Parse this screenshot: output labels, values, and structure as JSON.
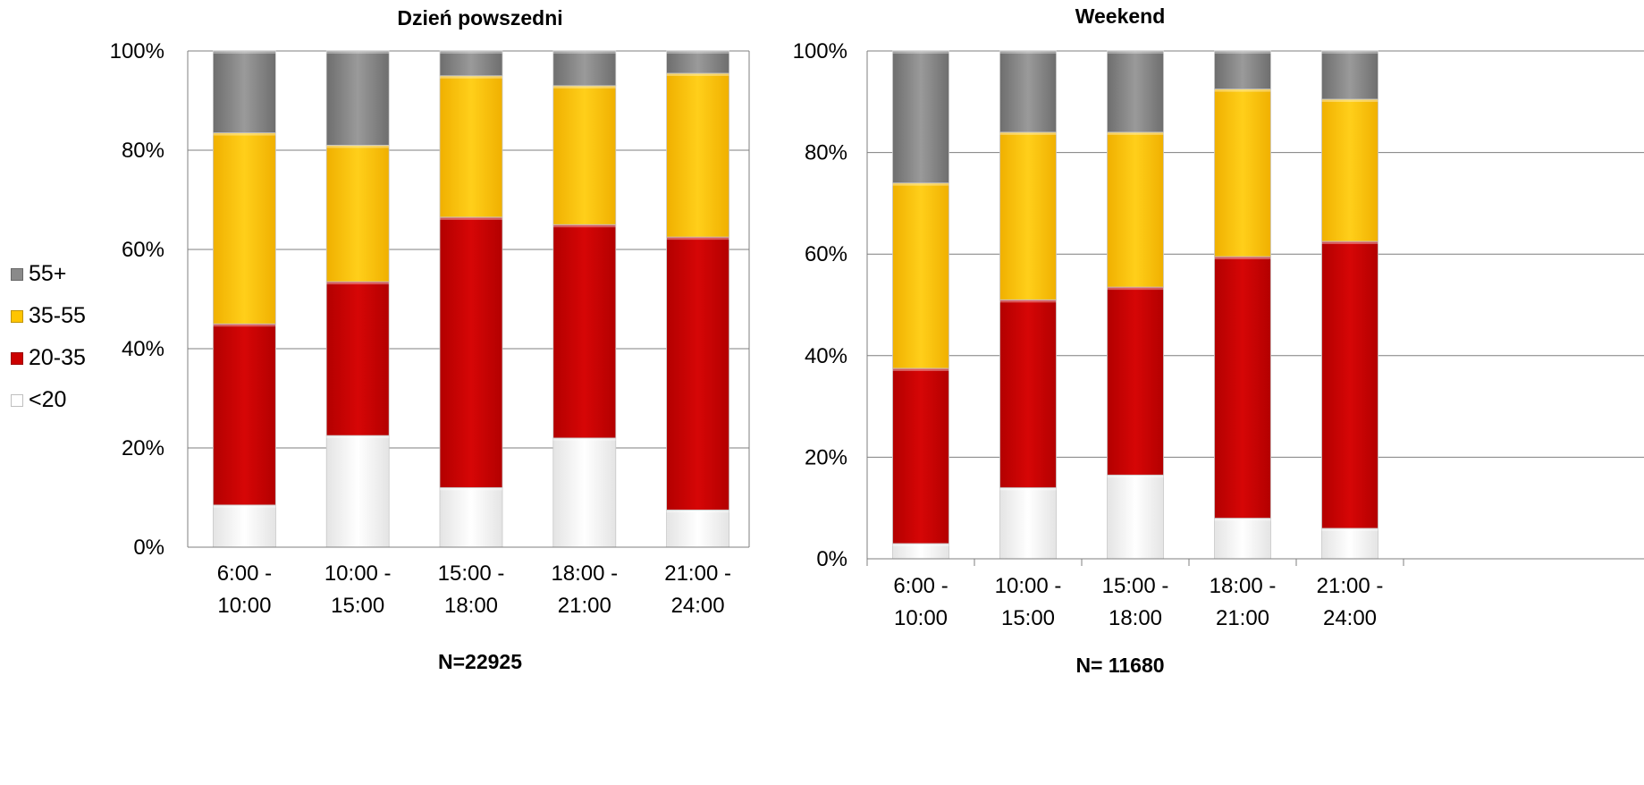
{
  "legend": [
    {
      "label": "55+",
      "color": "#8a8a8a"
    },
    {
      "label": "35-55",
      "color": "#ffc500"
    },
    {
      "label": "20-35",
      "color": "#cc0000"
    },
    {
      "label": "<20",
      "color": "#ffffff"
    }
  ],
  "chart_data": [
    {
      "type": "bar",
      "stacked": true,
      "title": "Dzień powszedni",
      "footnote": "N=22925",
      "categories": [
        "6:00 - 10:00",
        "10:00 - 15:00",
        "15:00 - 18:00",
        "18:00 - 21:00",
        "21:00 - 24:00"
      ],
      "y_ticks": [
        "0%",
        "20%",
        "40%",
        "60%",
        "80%",
        "100%"
      ],
      "ylim": [
        0,
        100
      ],
      "grid": true,
      "legend_position": "left",
      "series": [
        {
          "name": "<20",
          "color": "#ffffff",
          "values": [
            8.5,
            22.5,
            12,
            22,
            7.5
          ]
        },
        {
          "name": "20-35",
          "color": "#cc0000",
          "values": [
            36.5,
            31,
            54.5,
            43,
            55
          ]
        },
        {
          "name": "35-55",
          "color": "#ffc500",
          "values": [
            38.5,
            27.5,
            28.5,
            28,
            33
          ]
        },
        {
          "name": "55+",
          "color": "#8a8a8a",
          "values": [
            16.5,
            19,
            5,
            7,
            4.5
          ]
        }
      ]
    },
    {
      "type": "bar",
      "stacked": true,
      "title": "Weekend",
      "footnote": "N= 11680",
      "categories": [
        "6:00 - 10:00",
        "10:00 - 15:00",
        "15:00 - 18:00",
        "18:00 - 21:00",
        "21:00 - 24:00"
      ],
      "y_ticks": [
        "0%",
        "20%",
        "40%",
        "60%",
        "80%",
        "100%"
      ],
      "ylim": [
        0,
        100
      ],
      "grid": true,
      "legend_position": "left",
      "series": [
        {
          "name": "<20",
          "color": "#ffffff",
          "values": [
            3,
            14,
            16.5,
            8,
            6
          ]
        },
        {
          "name": "20-35",
          "color": "#cc0000",
          "values": [
            34.5,
            37,
            37,
            51.5,
            56.5
          ]
        },
        {
          "name": "35-55",
          "color": "#ffc500",
          "values": [
            36.5,
            33,
            30.5,
            33,
            28
          ]
        },
        {
          "name": "55+",
          "color": "#8a8a8a",
          "values": [
            26,
            16,
            16,
            7.5,
            9.5
          ]
        }
      ]
    }
  ]
}
